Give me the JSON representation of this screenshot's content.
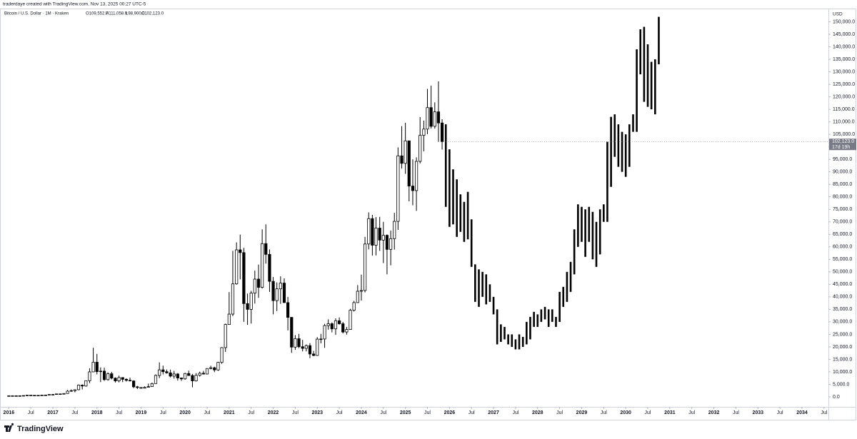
{
  "chart_data": {
    "type": "candlestick",
    "attribution": "traderdaye created with TradingView.com, Nov 13, 2025 00:27 UTC-5",
    "title": "Bitcoin / U.S. Dollar · 1M · Kraken",
    "ohlc_labels": [
      "O109,552.7",
      "H111,058.9",
      "L98,900.0",
      "C102,123.0"
    ],
    "currency": "USD",
    "last_price_label": "102,123.0",
    "countdown": "17d 19h",
    "brand": "TradingView",
    "xlim": [
      2015.8,
      2034.6
    ],
    "ylim": [
      -4000,
      155300
    ],
    "xticks": [
      2016,
      {
        "value": 2016.5,
        "label": "Jul"
      },
      2017,
      {
        "value": 2017.5,
        "label": "Jul"
      },
      2018,
      {
        "value": 2018.5,
        "label": "Jul"
      },
      2019,
      {
        "value": 2019.5,
        "label": "Jul"
      },
      2020,
      {
        "value": 2020.5,
        "label": "Jul"
      },
      2021,
      {
        "value": 2021.5,
        "label": "Jul"
      },
      2022,
      {
        "value": 2022.5,
        "label": "Jul"
      },
      2023,
      {
        "value": 2023.5,
        "label": "Jul"
      },
      2024,
      {
        "value": 2024.5,
        "label": "Jul"
      },
      2025,
      {
        "value": 2025.5,
        "label": "Jul"
      },
      2026,
      {
        "value": 2026.5,
        "label": "Jul"
      },
      2027,
      {
        "value": 2027.5,
        "label": "Jul"
      },
      2028,
      {
        "value": 2028.5,
        "label": "Jul"
      },
      2029,
      {
        "value": 2029.5,
        "label": "Jul"
      },
      2030,
      {
        "value": 2030.5,
        "label": "Jul"
      },
      2031,
      {
        "value": 2031.5,
        "label": "Jul"
      },
      2032,
      {
        "value": 2032.5,
        "label": "Jul"
      },
      2033,
      {
        "value": 2033.5,
        "label": "Jul"
      },
      2034,
      {
        "value": 2034.5,
        "label": "Jul"
      }
    ],
    "yticks": [
      {
        "value": 0,
        "label": "0.0"
      },
      {
        "value": 5000,
        "label": "5,000.0"
      },
      {
        "value": 10000,
        "label": "10,000.0"
      },
      {
        "value": 15000,
        "label": "15,000.0"
      },
      {
        "value": 20000,
        "label": "20,000.0"
      },
      {
        "value": 25000,
        "label": "25,000.0"
      },
      {
        "value": 30000,
        "label": "30,000.0"
      },
      {
        "value": 35000,
        "label": "35,000.0"
      },
      {
        "value": 40000,
        "label": "40,000.0"
      },
      {
        "value": 45000,
        "label": "45,000.0"
      },
      {
        "value": 50000,
        "label": "50,000.0"
      },
      {
        "value": 55000,
        "label": "55,000.0"
      },
      {
        "value": 60000,
        "label": "60,000.0"
      },
      {
        "value": 65000,
        "label": "65,000.0"
      },
      {
        "value": 70000,
        "label": "70,000.0"
      },
      {
        "value": 75000,
        "label": "75,000.0"
      },
      {
        "value": 80000,
        "label": "80,000.0"
      },
      {
        "value": 85000,
        "label": "85,000.0"
      },
      {
        "value": 90000,
        "label": "90,000.0"
      },
      {
        "value": 95000,
        "label": "95,000.0"
      },
      {
        "value": 100000,
        "label": "100,000.0"
      },
      {
        "value": 105000,
        "label": "105,000.0"
      },
      {
        "value": 110000,
        "label": "110,000.0"
      },
      {
        "value": 115000,
        "label": "115,000.0"
      },
      {
        "value": 120000,
        "label": "120,000.0"
      },
      {
        "value": 125000,
        "label": "125,000.0"
      },
      {
        "value": 130000,
        "label": "130,000.0"
      },
      {
        "value": 135000,
        "label": "135,000.0"
      },
      {
        "value": 140000,
        "label": "140,000.0"
      },
      {
        "value": 145000,
        "label": "145,000.0"
      },
      {
        "value": 150000,
        "label": "150,000.0"
      }
    ],
    "series": [
      {
        "color_up": "#ffffff",
        "color_down": "#000000",
        "color": "#000000",
        "x": [
          2016,
          2016.083,
          2016.167,
          2016.25,
          2016.333,
          2016.417,
          2016.5,
          2016.583,
          2016.667,
          2016.75,
          2016.833,
          2016.917,
          2017,
          2017.083,
          2017.167,
          2017.25,
          2017.333,
          2017.417,
          2017.5,
          2017.583,
          2017.667,
          2017.75,
          2017.833,
          2017.917,
          2018,
          2018.083,
          2018.167,
          2018.25,
          2018.333,
          2018.417,
          2018.5,
          2018.583,
          2018.667,
          2018.75,
          2018.833,
          2018.917,
          2019,
          2019.083,
          2019.167,
          2019.25,
          2019.333,
          2019.417,
          2019.5,
          2019.583,
          2019.667,
          2019.75,
          2019.833,
          2019.917,
          2020,
          2020.083,
          2020.167,
          2020.25,
          2020.333,
          2020.417,
          2020.5,
          2020.583,
          2020.667,
          2020.75,
          2020.833,
          2020.917,
          2021,
          2021.083,
          2021.167,
          2021.25,
          2021.333,
          2021.417,
          2021.5,
          2021.583,
          2021.667,
          2021.75,
          2021.833,
          2021.917,
          2022,
          2022.083,
          2022.167,
          2022.25,
          2022.333,
          2022.417,
          2022.5,
          2022.583,
          2022.667,
          2022.75,
          2022.833,
          2022.917,
          2023,
          2023.083,
          2023.167,
          2023.25,
          2023.333,
          2023.417,
          2023.5,
          2023.583,
          2023.667,
          2023.75,
          2023.833,
          2023.917,
          2024,
          2024.083,
          2024.167,
          2024.25,
          2024.333,
          2024.417,
          2024.5,
          2024.583,
          2024.667,
          2024.75,
          2024.833,
          2024.917,
          2025,
          2025.083,
          2025.167,
          2025.25,
          2025.333,
          2025.417,
          2025.5,
          2025.583,
          2025.667,
          2025.75,
          2025.833
        ],
        "open": [
          430,
          370,
          437,
          416,
          448,
          531,
          673,
          624,
          575,
          609,
          700,
          742,
          963,
          970,
          1190,
          1080,
          1350,
          2300,
          2480,
          2875,
          4700,
          4340,
          6470,
          10000,
          13860,
          10100,
          10300,
          6900,
          9240,
          7490,
          6390,
          7730,
          7030,
          6630,
          6370,
          4020,
          3740,
          3460,
          3820,
          4100,
          5320,
          8570,
          10820,
          10080,
          9600,
          8300,
          9150,
          7560,
          7200,
          9350,
          8550,
          6410,
          8630,
          9450,
          9140,
          11350,
          11650,
          10780,
          13800,
          19700,
          28950,
          33100,
          45200,
          58800,
          57700,
          37300,
          35000,
          41500,
          47100,
          43800,
          61300,
          57000,
          46200,
          38500,
          43200,
          45500,
          37700,
          31800,
          19900,
          23300,
          20050,
          19400,
          20500,
          17150,
          16550,
          23100,
          23150,
          28500,
          29250,
          27200,
          30450,
          29250,
          25950,
          26950,
          34650,
          37700,
          42250,
          42550,
          61150,
          71300,
          60650,
          67500,
          62700,
          64600,
          59000,
          63300,
          70200,
          96400,
          93400,
          102400,
          84300,
          82500,
          94200,
          104600,
          107100,
          115700,
          108200,
          114000,
          109552.7
        ],
        "high": [
          460,
          445,
          440,
          470,
          550,
          780,
          700,
          625,
          630,
          740,
          760,
          980,
          1150,
          1210,
          1300,
          1360,
          2750,
          3000,
          2950,
          4950,
          5000,
          6500,
          11400,
          19666,
          17200,
          11800,
          11700,
          9800,
          10000,
          7800,
          8500,
          7800,
          7400,
          7700,
          6600,
          4400,
          3850,
          4200,
          5300,
          5700,
          9000,
          13800,
          12500,
          10950,
          10900,
          10400,
          9500,
          7700,
          9600,
          10500,
          9200,
          9500,
          10100,
          10400,
          11450,
          12470,
          12050,
          14000,
          19900,
          29300,
          41900,
          58400,
          61800,
          64900,
          59600,
          41300,
          42400,
          50500,
          52900,
          67000,
          69000,
          59000,
          47900,
          45800,
          48200,
          47400,
          40000,
          31900,
          24700,
          25200,
          22800,
          21000,
          21500,
          18400,
          23900,
          25200,
          29200,
          31000,
          29800,
          31400,
          31800,
          30000,
          28000,
          35200,
          38400,
          44700,
          48900,
          64000,
          73800,
          72800,
          71900,
          72000,
          70000,
          65000,
          66500,
          73600,
          99800,
          108300,
          109600,
          102500,
          95000,
          95800,
          111900,
          110500,
          123200,
          124500,
          117800,
          126200,
          111058.9
        ],
        "low": [
          350,
          365,
          390,
          410,
          435,
          520,
          470,
          480,
          590,
          605,
          690,
          740,
          750,
          920,
          890,
          1060,
          1340,
          2100,
          1830,
          2650,
          2950,
          4100,
          5500,
          10700,
          9000,
          5900,
          6400,
          6500,
          7000,
          5750,
          5800,
          5900,
          6100,
          6200,
          3500,
          3150,
          3350,
          3380,
          3800,
          4100,
          5300,
          7500,
          9000,
          9300,
          7800,
          7300,
          6500,
          6400,
          6850,
          8400,
          3850,
          6150,
          8100,
          8950,
          9000,
          11000,
          9900,
          10400,
          13200,
          18000,
          28800,
          32300,
          44900,
          47000,
          30000,
          28800,
          29300,
          37300,
          39600,
          43300,
          53300,
          42000,
          33000,
          34300,
          37200,
          37600,
          26600,
          17600,
          18800,
          19500,
          18200,
          18200,
          15500,
          16300,
          16500,
          21400,
          19600,
          26900,
          25800,
          24800,
          28900,
          25400,
          24900,
          26900,
          34100,
          37600,
          38500,
          41800,
          59000,
          56500,
          56600,
          58400,
          53500,
          49000,
          52600,
          58900,
          66800,
          91300,
          89200,
          78200,
          76600,
          74400,
          93400,
          98200,
          105100,
          107300,
          107300,
          102000,
          98900
        ],
        "close": [
          370,
          437,
          416,
          448,
          531,
          673,
          624,
          575,
          609,
          700,
          742,
          963,
          970,
          1190,
          1080,
          1350,
          2300,
          2480,
          2875,
          4700,
          4340,
          6470,
          10000,
          13860,
          10100,
          10300,
          6900,
          9240,
          7490,
          6390,
          7730,
          7030,
          6630,
          6370,
          4020,
          3740,
          3460,
          3820,
          4100,
          5320,
          8570,
          10820,
          10080,
          9600,
          8300,
          9150,
          7560,
          7200,
          9350,
          8550,
          6410,
          8630,
          9450,
          9140,
          11350,
          11650,
          10780,
          13800,
          19700,
          28950,
          33100,
          45200,
          58800,
          57700,
          37300,
          35000,
          41500,
          47100,
          43800,
          61300,
          57000,
          46200,
          38500,
          43200,
          45500,
          37700,
          31800,
          19900,
          23300,
          20050,
          19400,
          20500,
          17150,
          16550,
          23100,
          23150,
          28500,
          29250,
          27200,
          30450,
          29250,
          25950,
          26950,
          34650,
          37700,
          42250,
          42550,
          61150,
          71300,
          60650,
          67500,
          62700,
          64600,
          59000,
          63300,
          70200,
          96400,
          93400,
          102400,
          84300,
          82500,
          94200,
          104600,
          107100,
          115700,
          108200,
          114000,
          109552.7,
          102123
        ]
      },
      {
        "color": "#000000",
        "x": [
          2025.917,
          2026,
          2026.083,
          2026.167,
          2026.25,
          2026.333,
          2026.417,
          2026.5,
          2026.583,
          2026.667,
          2026.75,
          2026.833,
          2026.917,
          2027,
          2027.083,
          2027.167,
          2027.25,
          2027.333,
          2027.417,
          2027.5,
          2027.583,
          2027.667,
          2027.75,
          2027.833,
          2027.917,
          2028,
          2028.083,
          2028.167,
          2028.25,
          2028.333,
          2028.417,
          2028.5,
          2028.583,
          2028.667,
          2028.75,
          2028.833,
          2028.917,
          2029,
          2029.083,
          2029.167,
          2029.25,
          2029.333,
          2029.417,
          2029.5,
          2029.583,
          2029.667,
          2029.75,
          2029.833,
          2029.917,
          2030,
          2030.083,
          2030.167,
          2030.25,
          2030.333,
          2030.417,
          2030.5,
          2030.583,
          2030.667,
          2030.75
        ],
        "high": [
          109000,
          99000,
          91000,
          87000,
          81000,
          78000,
          82000,
          71000,
          53000,
          51000,
          50000,
          49000,
          45000,
          40000,
          35000,
          29000,
          28000,
          25000,
          25000,
          23000,
          25000,
          24000,
          30000,
          32000,
          34000,
          33000,
          35000,
          36000,
          35000,
          35000,
          32000,
          42000,
          44000,
          50000,
          54000,
          67000,
          77000,
          76000,
          75000,
          76000,
          74000,
          70000,
          75000,
          77000,
          102000,
          112000,
          113000,
          109000,
          106000,
          105000,
          109000,
          113000,
          139000,
          147000,
          148000,
          141000,
          134000,
          135000,
          152000
        ],
        "low": [
          76000,
          68000,
          69000,
          64000,
          66000,
          62000,
          63000,
          52000,
          38000,
          36000,
          40000,
          37000,
          38000,
          33000,
          21000,
          22000,
          23000,
          21000,
          20000,
          19000,
          19000,
          20000,
          21000,
          23000,
          28000,
          28000,
          30000,
          31000,
          28000,
          30000,
          28000,
          30000,
          36000,
          38000,
          42000,
          49000,
          60000,
          62000,
          56000,
          62000,
          55000,
          52000,
          57000,
          70000,
          70000,
          84000,
          96000,
          92000,
          90000,
          88000,
          92000,
          106000,
          106000,
          129000,
          118000,
          116000,
          115000,
          113000,
          133000
        ]
      }
    ]
  }
}
